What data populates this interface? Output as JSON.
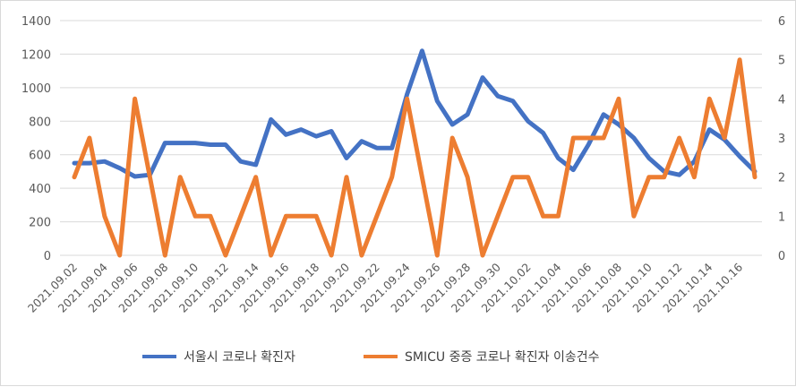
{
  "chart_data": {
    "type": "line",
    "title": "",
    "xlabel": "",
    "ylabel": "",
    "ylim": [
      0,
      1400
    ],
    "y2lim": [
      0,
      6
    ],
    "yticks": [
      "0",
      "200",
      "400",
      "600",
      "800",
      "1000",
      "1200",
      "1400"
    ],
    "y2ticks": [
      "0",
      "1",
      "2",
      "3",
      "4",
      "5",
      "6"
    ],
    "grid": true,
    "legend_position": "bottom",
    "x": [
      "2021.09.02",
      "2021.09.03",
      "2021.09.04",
      "2021.09.05",
      "2021.09.06",
      "2021.09.07",
      "2021.09.08",
      "2021.09.09",
      "2021.09.10",
      "2021.09.11",
      "2021.09.12",
      "2021.09.13",
      "2021.09.14",
      "2021.09.15",
      "2021.09.16",
      "2021.09.17",
      "2021.09.18",
      "2021.09.19",
      "2021.09.20",
      "2021.09.21",
      "2021.09.22",
      "2021.09.23",
      "2021.09.24",
      "2021.09.25",
      "2021.09.26",
      "2021.09.27",
      "2021.09.28",
      "2021.09.29",
      "2021.09.30",
      "2021.10.01",
      "2021.10.02",
      "2021.10.03",
      "2021.10.04",
      "2021.10.05",
      "2021.10.06",
      "2021.10.07",
      "2021.10.08",
      "2021.10.09",
      "2021.10.10",
      "2021.10.11",
      "2021.10.12",
      "2021.10.13",
      "2021.10.14",
      "2021.10.15",
      "2021.10.16",
      "2021.10.17"
    ],
    "xticks_shown": [
      "2021.09.02",
      "2021.09.04",
      "2021.09.06",
      "2021.09.08",
      "2021.09.10",
      "2021.09.12",
      "2021.09.14",
      "2021.09.16",
      "2021.09.18",
      "2021.09.20",
      "2021.09.22",
      "2021.09.24",
      "2021.09.26",
      "2021.09.28",
      "2021.09.30",
      "2021.10.02",
      "2021.10.04",
      "2021.10.06",
      "2021.10.08",
      "2021.10.10",
      "2021.10.12",
      "2021.10.14",
      "2021.10.16"
    ],
    "series": [
      {
        "name": "서울시 코로나 확진자",
        "axis": "left",
        "color": "#4472c4",
        "values": [
          550,
          550,
          560,
          520,
          470,
          480,
          670,
          670,
          670,
          660,
          660,
          560,
          540,
          810,
          720,
          750,
          710,
          740,
          580,
          680,
          640,
          640,
          960,
          1220,
          920,
          780,
          840,
          1060,
          950,
          920,
          800,
          730,
          580,
          510,
          660,
          840,
          780,
          700,
          580,
          500,
          480,
          560,
          750,
          690,
          590,
          500
        ]
      },
      {
        "name": "SMICU 중증 코로나 확진자 이송건수",
        "axis": "right",
        "color": "#ed7d31",
        "values": [
          2,
          3,
          1,
          0,
          4,
          2,
          0,
          2,
          1,
          1,
          0,
          1,
          2,
          0,
          1,
          1,
          1,
          0,
          2,
          0,
          1,
          2,
          4,
          2,
          0,
          3,
          2,
          0,
          1,
          2,
          2,
          1,
          1,
          3,
          3,
          3,
          4,
          1,
          2,
          2,
          3,
          2,
          4,
          3,
          5,
          2
        ]
      }
    ]
  }
}
